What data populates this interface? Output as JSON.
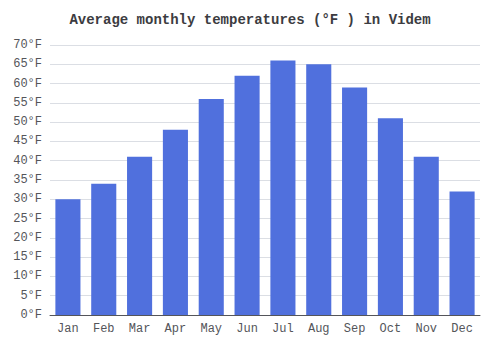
{
  "chart_data": {
    "type": "bar",
    "title": "Average monthly temperatures (°F ) in Videm",
    "categories": [
      "Jan",
      "Feb",
      "Mar",
      "Apr",
      "May",
      "Jun",
      "Jul",
      "Aug",
      "Sep",
      "Oct",
      "Nov",
      "Dec"
    ],
    "values": [
      30,
      34,
      41,
      48,
      56,
      62,
      66,
      65,
      59,
      51,
      41,
      32
    ],
    "ylim": [
      0,
      70
    ],
    "yticks": [
      {
        "value": 0,
        "label": "0°F"
      },
      {
        "value": 5,
        "label": "5°F"
      },
      {
        "value": 10,
        "label": "10°F"
      },
      {
        "value": 15,
        "label": "15°F"
      },
      {
        "value": 20,
        "label": "20°F"
      },
      {
        "value": 25,
        "label": "25°F"
      },
      {
        "value": 30,
        "label": "30°F"
      },
      {
        "value": 35,
        "label": "35°F"
      },
      {
        "value": 40,
        "label": "40°F"
      },
      {
        "value": 45,
        "label": "45°F"
      },
      {
        "value": 50,
        "label": "50°F"
      },
      {
        "value": 55,
        "label": "55°F"
      },
      {
        "value": 60,
        "label": "60°F"
      },
      {
        "value": 65,
        "label": "65°F"
      },
      {
        "value": 70,
        "label": "70°F"
      }
    ],
    "grid": true
  }
}
